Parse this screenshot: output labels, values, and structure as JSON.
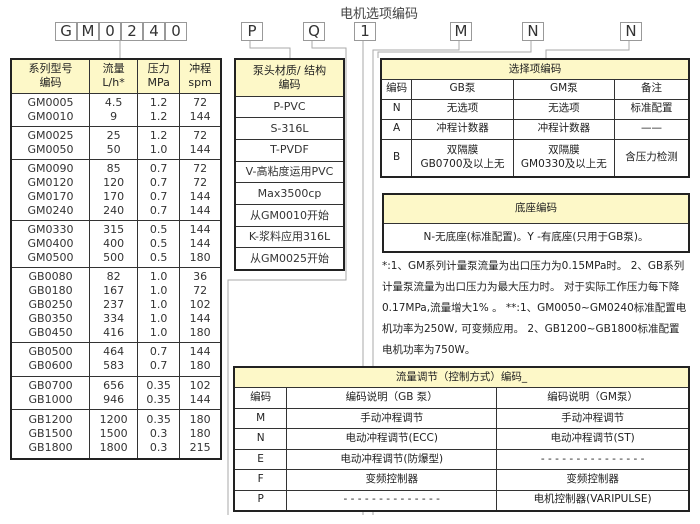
{
  "title": "电机选项编码",
  "code_boxes": [
    "G",
    "M",
    "0",
    "2",
    "4",
    "0",
    "P",
    "Q",
    "1",
    "M",
    "N",
    "N"
  ],
  "series_table": {
    "headers": [
      [
        "系列型号",
        "编码"
      ],
      [
        "流量",
        "L/h*"
      ],
      [
        "压力",
        "MPa"
      ],
      [
        "冲程",
        "spm"
      ]
    ],
    "groups": [
      [
        [
          "GM0005",
          "4.5",
          "1.2",
          "72"
        ],
        [
          "GM0010",
          "9",
          "1.2",
          "144"
        ]
      ],
      [
        [
          "GM0025",
          "25",
          "1.2",
          "72"
        ],
        [
          "GM0050",
          "50",
          "1.0",
          "144"
        ]
      ],
      [
        [
          "GM0090",
          "85",
          "0.7",
          "72"
        ],
        [
          "GM0120",
          "120",
          "0.7",
          "72"
        ],
        [
          "GM0170",
          "170",
          "0.7",
          "144"
        ],
        [
          "GM0240",
          "240",
          "0.7",
          "144"
        ]
      ],
      [
        [
          "GM0330",
          "315",
          "0.5",
          "144"
        ],
        [
          "GM0400",
          "400",
          "0.5",
          "144"
        ],
        [
          "GM0500",
          "500",
          "0.5",
          "180"
        ]
      ],
      [
        [
          "GB0080",
          "82",
          "1.0",
          "36"
        ],
        [
          "GB0180",
          "167",
          "1.0",
          "72"
        ],
        [
          "GB0250",
          "237",
          "1.0",
          "102"
        ],
        [
          "GB0350",
          "334",
          "1.0",
          "144"
        ],
        [
          "GB0450",
          "416",
          "1.0",
          "180"
        ]
      ],
      [
        [
          "GB0500",
          "464",
          "0.7",
          "144"
        ],
        [
          "GB0600",
          "583",
          "0.7",
          "180"
        ]
      ],
      [
        [
          "GB0700",
          "656",
          "0.35",
          "102"
        ],
        [
          "GB1000",
          "946",
          "0.35",
          "144"
        ]
      ],
      [
        [
          "GB1200",
          "1200",
          "0.35",
          "180"
        ],
        [
          "GB1500",
          "1500",
          "0.3",
          "180"
        ],
        [
          "GB1800",
          "1800",
          "0.3",
          "215"
        ]
      ]
    ]
  },
  "material_table": {
    "header": [
      "泵头材质/ 结构",
      "编码"
    ],
    "items": [
      "P-PVC",
      "S-316L",
      "T-PVDF",
      "V-高粘度运用PVC",
      "Max3500cp",
      "从GM0010开始",
      "K-浆料应用316L",
      "从GM0025开始"
    ]
  },
  "option_table": {
    "title": "选择项编码",
    "headers": [
      "编码",
      "GB泵",
      "GM泵",
      "备注"
    ],
    "rows": [
      [
        "N",
        "无选项",
        "无选项",
        "标准配置"
      ],
      [
        "A",
        "冲程计数器",
        "冲程计数器",
        "——"
      ],
      [
        "B",
        "双隔膜\nGB0700及以上无",
        "双隔膜\nGM0330及以上无",
        "含压力检测"
      ]
    ]
  },
  "base_table": {
    "title": "底座编码",
    "text": "N-无底座(标准配置)。Y -有底座(只用于GB泵)。"
  },
  "notes": "*:1、GM系列计量泵流量为出口压力为0.15MPa时。 2、GB系列计量泵流量为出口压力为最大压力时。 对于实际工作压力每下降0.17MPa,流量增大1% 。 **:1、GM0050~GM0240标准配置电机功率为250W, 可变频应用。 2、GB1200~GB1800标准配置电机功率为750W。",
  "flow_table": {
    "title": "流量调节（控制方式）编码_",
    "headers": [
      "编码",
      "编码说明（GB 泵）",
      "编码说明（GM泵）"
    ],
    "rows": [
      [
        "M",
        "手动冲程调节",
        "手动冲程调节"
      ],
      [
        "N",
        "电动冲程调节(ECC)",
        "电动冲程调节(ST)"
      ],
      [
        "E",
        "电动冲程调节(防爆型)",
        "- - - - - - - - - - - - - - -"
      ],
      [
        "F",
        "变频控制器",
        "变频控制器"
      ],
      [
        "P",
        "- - - - - - - - - - - - - -",
        "电机控制器(VARIPULSE)"
      ]
    ]
  },
  "colors": {
    "header_bg": "#fdf8c8",
    "border": "#222222",
    "connector": "#aaaaaa"
  }
}
